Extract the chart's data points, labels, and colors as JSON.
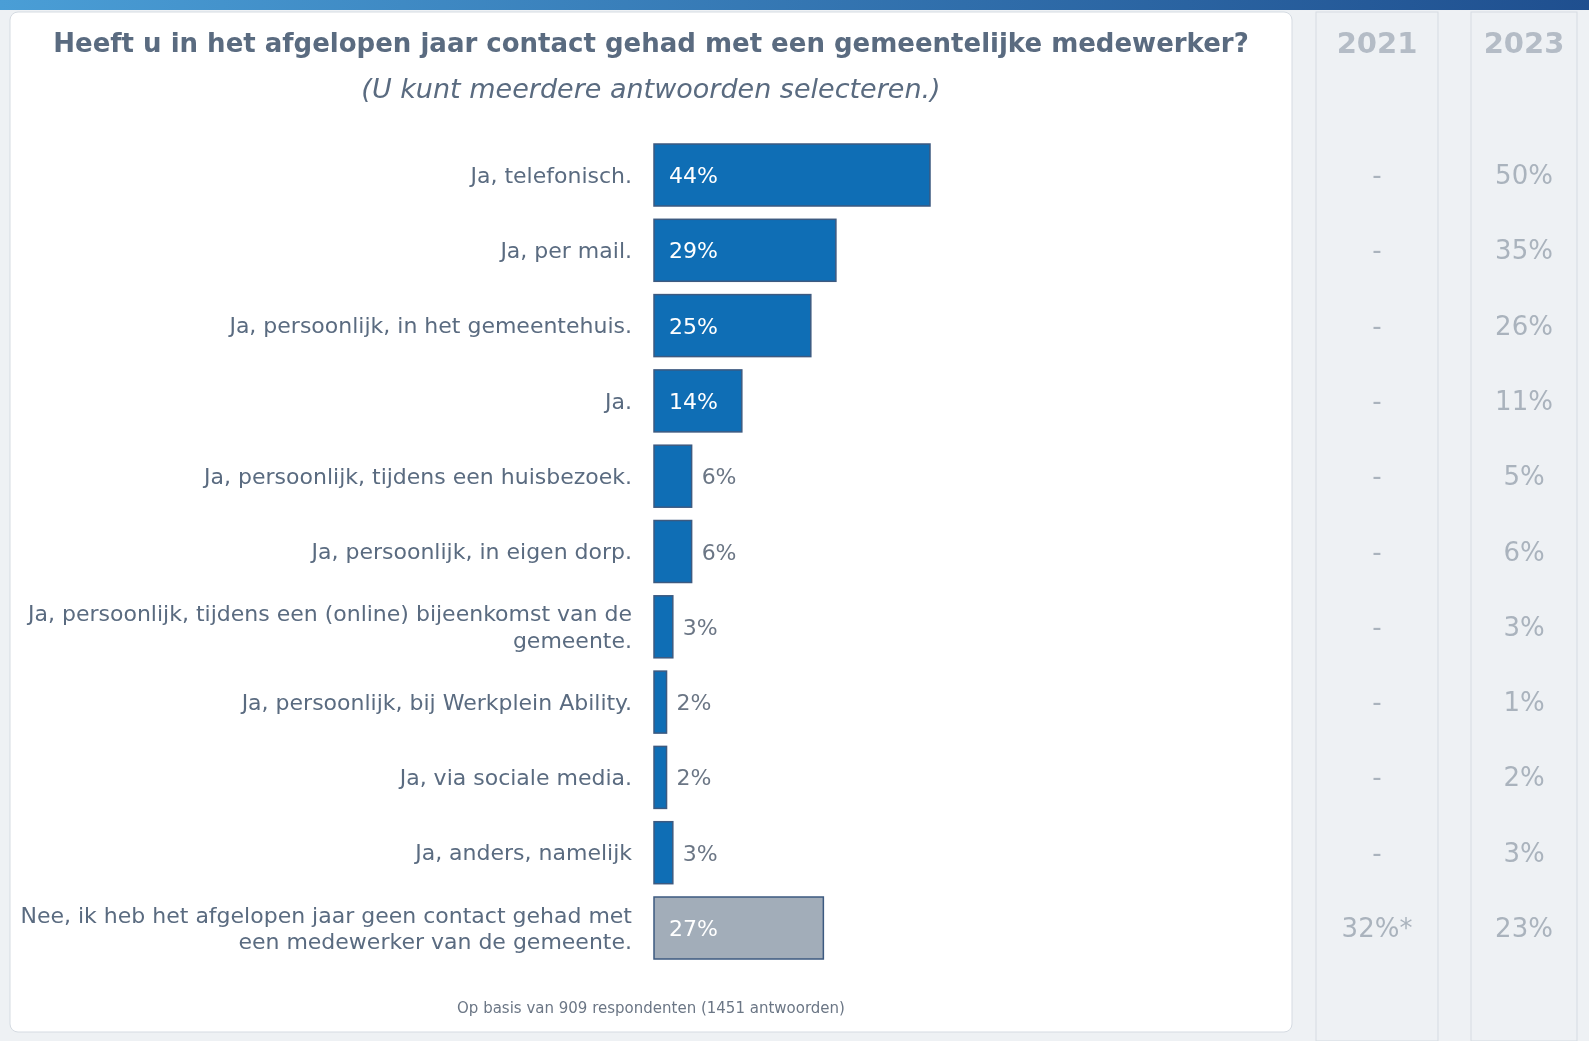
{
  "chart_data": [
    {
      "type": "bar",
      "orientation": "horizontal",
      "title": "Heeft u in het afgelopen jaar contact gehad met een gemeentelijke medewerker?",
      "subtitle": "(U kunt meerdere antwoorden selecteren.)",
      "categories": [
        "Ja, telefonisch.",
        "Ja, per mail.",
        "Ja, persoonlijk, in het gemeentehuis.",
        "Ja.",
        "Ja, persoonlijk, tijdens een huisbezoek.",
        "Ja, persoonlijk, in eigen dorp.",
        "Ja, persoonlijk, tijdens een (online) bijeenkomst van de gemeente.",
        "Ja, persoonlijk, bij Werkplein Ability.",
        "Ja, via sociale media.",
        "Ja, anders, namelijk",
        "Nee, ik heb het afgelopen jaar geen contact gehad met een medewerker van de gemeente."
      ],
      "values": [
        44,
        29,
        25,
        14,
        6,
        6,
        3,
        2,
        2,
        3,
        27
      ],
      "colors": [
        "#0f6eb5",
        "#0f6eb5",
        "#0f6eb5",
        "#0f6eb5",
        "#0f6eb5",
        "#0f6eb5",
        "#0f6eb5",
        "#0f6eb5",
        "#0f6eb5",
        "#0f6eb5",
        "#a2adb9"
      ],
      "value_labels": [
        "44%",
        "29%",
        "25%",
        "14%",
        "6%",
        "6%",
        "3%",
        "2%",
        "2%",
        "3%",
        "27%"
      ],
      "annotations": [
        "Op basis van 909 respondenten (1451 antwoorden)"
      ]
    },
    {
      "type": "other",
      "title": "2021",
      "annotations": [
        "-",
        "-",
        "-",
        "-",
        "-",
        "-",
        "-",
        "-",
        "-",
        "-",
        "32%*"
      ]
    },
    {
      "type": "other",
      "title": "2023",
      "annotations": [
        "50%",
        "35%",
        "26%",
        "11%",
        "5%",
        "6%",
        "3%",
        "1%",
        "2%",
        "3%",
        "23%"
      ]
    }
  ]
}
